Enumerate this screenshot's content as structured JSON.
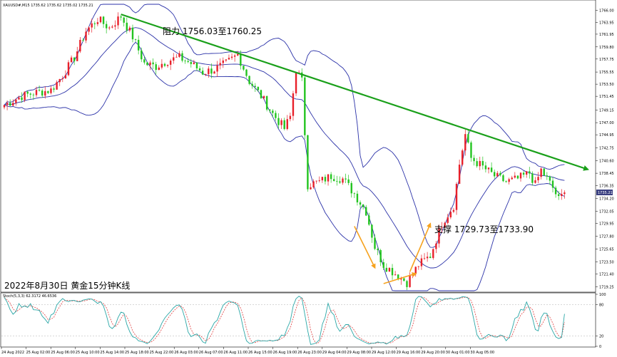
{
  "header": {
    "symbol_info": "XAUUSD#,M15  1735.62 1735.62 1735.02 1735.21",
    "stoch_info": "Stoch(5,3,3) 62.3172 46.6536"
  },
  "annotations": {
    "resistance": "阻力 1756.03至1760.25",
    "support": "支撑 1729.73至1733.90",
    "caption": "2022年8月30日  黄金15分钟K线"
  },
  "colors": {
    "bull": "#e8202a",
    "bear": "#22c41f",
    "bands": "#2b32a8",
    "trend": "#1aa01a",
    "arrow_orange": "#f6a21e",
    "stoch_main": "#2aa7a7",
    "stoch_signal": "#e04040",
    "price_tag": "#3a3f80"
  },
  "chart_data": {
    "type": "candlestick",
    "title": "2022年8月30日  黄金15分钟K线",
    "symbol": "XAUUSD#",
    "timeframe": "M15",
    "ohlc_header": {
      "open": 1735.62,
      "high": 1735.62,
      "low": 1735.02,
      "close": 1735.21
    },
    "current_price_label": "1735.21",
    "y_ticks": [
      "1766.00",
      "1763.95",
      "1761.95",
      "1759.80",
      "1757.75",
      "1755.55",
      "1753.50",
      "1751.45",
      "1749.15",
      "1747.00",
      "1744.95",
      "1742.75",
      "1740.60",
      "1738.45",
      "1736.35",
      "1734.20",
      "1732.05",
      "1729.95",
      "1727.80",
      "1725.65",
      "1723.50",
      "1721.40",
      "1719.25"
    ],
    "x_ticks": [
      "24 Aug 2022",
      "25 Aug 02:00",
      "25 Aug 06:00",
      "25 Aug 10:00",
      "25 Aug 14:00",
      "25 Aug 18:00",
      "25 Aug 22:00",
      "26 Aug 03:00",
      "26 Aug 07:00",
      "26 Aug 11:00",
      "26 Aug 15:00",
      "26 Aug 19:00",
      "26 Aug 23:00",
      "29 Aug 04:00",
      "29 Aug 08:00",
      "29 Aug 12:00",
      "29 Aug 16:00",
      "29 Aug 20:00",
      "30 Aug 01:00",
      "30 Aug 05:00"
    ],
    "price_anchors": [
      [
        0,
        1750
      ],
      [
        6,
        1751.5
      ],
      [
        10,
        1752
      ],
      [
        16,
        1752.5
      ],
      [
        20,
        1755
      ],
      [
        24,
        1758
      ],
      [
        28,
        1762.5
      ],
      [
        32,
        1764.5
      ],
      [
        36,
        1763
      ],
      [
        40,
        1765
      ],
      [
        44,
        1761.5
      ],
      [
        48,
        1757
      ],
      [
        52,
        1756.5
      ],
      [
        56,
        1757.5
      ],
      [
        60,
        1758
      ],
      [
        64,
        1757
      ],
      [
        68,
        1755.5
      ],
      [
        72,
        1756
      ],
      [
        76,
        1757
      ],
      [
        80,
        1758.5
      ],
      [
        84,
        1754
      ],
      [
        88,
        1751.5
      ],
      [
        92,
        1748.5
      ],
      [
        96,
        1746
      ],
      [
        98,
        1748
      ],
      [
        100,
        1756
      ],
      [
        102,
        1754
      ],
      [
        104,
        1736.5
      ],
      [
        108,
        1737
      ],
      [
        112,
        1738
      ],
      [
        116,
        1737.5
      ],
      [
        120,
        1735
      ],
      [
        124,
        1732
      ],
      [
        127,
        1726
      ],
      [
        130,
        1723
      ],
      [
        134,
        1721.5
      ],
      [
        138,
        1720
      ],
      [
        142,
        1723
      ],
      [
        146,
        1724.5
      ],
      [
        150,
        1730
      ],
      [
        154,
        1733
      ],
      [
        156,
        1740
      ],
      [
        158,
        1745
      ],
      [
        160,
        1741
      ],
      [
        164,
        1739.5
      ],
      [
        168,
        1738
      ],
      [
        172,
        1737
      ],
      [
        176,
        1737.5
      ],
      [
        180,
        1738.5
      ],
      [
        182,
        1736.5
      ],
      [
        184,
        1739
      ],
      [
        188,
        1736
      ],
      [
        190,
        1734
      ],
      [
        192,
        1735.2
      ]
    ],
    "bollinger": {
      "period": 20,
      "deviations": 2
    },
    "trendline": {
      "from": {
        "index": 40,
        "price": 1765.3
      },
      "to": {
        "index": 200,
        "price": 1739.1
      }
    },
    "support_arrows": [
      {
        "from": {
          "index": 120,
          "price": 1729.5
        },
        "to": {
          "index": 127,
          "price": 1722.5
        }
      },
      {
        "from": {
          "index": 130,
          "price": 1719.8
        },
        "to": {
          "index": 141,
          "price": 1721.5
        }
      },
      {
        "from": {
          "index": 139,
          "price": 1721.8
        },
        "to": {
          "index": 146,
          "price": 1729.9
        }
      }
    ],
    "stochastic": {
      "k": 5,
      "d": 3,
      "slowing": 3,
      "main_value": 62.3172,
      "signal_value": 46.6536,
      "levels": [
        80,
        20
      ],
      "y_ticks": [
        "100",
        "80",
        "20",
        "0"
      ]
    }
  }
}
